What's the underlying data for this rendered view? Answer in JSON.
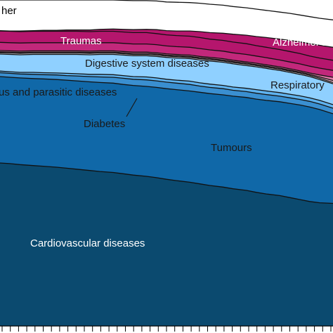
{
  "chart_data": {
    "type": "area",
    "stacked": true,
    "x_ticks": 40,
    "ylim": [
      0,
      1
    ],
    "grid": false,
    "legend": "inline",
    "x": [
      0,
      0.03,
      0.06,
      0.1,
      0.13,
      0.17,
      0.2,
      0.23,
      0.27,
      0.3,
      0.34,
      0.37,
      0.4,
      0.44,
      0.47,
      0.5,
      0.53,
      0.57,
      0.6,
      0.63,
      0.67,
      0.7,
      0.74,
      0.77,
      0.8,
      0.84,
      0.87,
      0.9,
      0.93,
      0.96,
      1
    ],
    "series": [
      {
        "name": "Cardiovascular diseases",
        "color": "#0b4a6f",
        "values": [
          0.5,
          0.498,
          0.495,
          0.492,
          0.49,
          0.487,
          0.484,
          0.481,
          0.477,
          0.474,
          0.471,
          0.467,
          0.463,
          0.459,
          0.455,
          0.45,
          0.446,
          0.441,
          0.436,
          0.431,
          0.426,
          0.421,
          0.416,
          0.41,
          0.405,
          0.4,
          0.394,
          0.388,
          0.382,
          0.378,
          0.376
        ]
      },
      {
        "name": "Tumours",
        "color": "#1068a8",
        "values": [
          0.265,
          0.265,
          0.266,
          0.267,
          0.268,
          0.269,
          0.27,
          0.271,
          0.272,
          0.273,
          0.274,
          0.274,
          0.275,
          0.276,
          0.277,
          0.278,
          0.279,
          0.28,
          0.281,
          0.282,
          0.283,
          0.284,
          0.285,
          0.286,
          0.287,
          0.288,
          0.289,
          0.29,
          0.29,
          0.286,
          0.275
        ]
      },
      {
        "name": "Diabetes",
        "color": "#3a8fd0",
        "values": [
          0.012,
          0.012,
          0.012,
          0.013,
          0.013,
          0.014,
          0.014,
          0.015,
          0.016,
          0.017,
          0.018,
          0.019,
          0.019,
          0.02,
          0.02,
          0.02,
          0.02,
          0.02,
          0.019,
          0.019,
          0.019,
          0.018,
          0.018,
          0.018,
          0.018,
          0.017,
          0.017,
          0.017,
          0.017,
          0.017,
          0.017
        ]
      },
      {
        "name": "us and parasitic diseases",
        "color": "#5fb2ee",
        "values": [
          0.005,
          0.005,
          0.005,
          0.006,
          0.006,
          0.006,
          0.007,
          0.007,
          0.007,
          0.008,
          0.008,
          0.008,
          0.008,
          0.009,
          0.009,
          0.009,
          0.009,
          0.01,
          0.01,
          0.01,
          0.01,
          0.01,
          0.01,
          0.011,
          0.011,
          0.011,
          0.011,
          0.011,
          0.011,
          0.011,
          0.011
        ]
      },
      {
        "name": "Respiratory",
        "color": "#8fd0ff",
        "values": [
          0.052,
          0.053,
          0.054,
          0.055,
          0.056,
          0.057,
          0.058,
          0.059,
          0.06,
          0.061,
          0.062,
          0.063,
          0.064,
          0.065,
          0.066,
          0.067,
          0.068,
          0.069,
          0.07,
          0.071,
          0.071,
          0.071,
          0.07,
          0.07,
          0.069,
          0.068,
          0.067,
          0.066,
          0.065,
          0.064,
          0.064
        ]
      },
      {
        "name": "",
        "color": "#f0eef8",
        "values": [
          0.004,
          0.004,
          0.004,
          0.004,
          0.004,
          0.004,
          0.004,
          0.004,
          0.004,
          0.004,
          0.004,
          0.004,
          0.004,
          0.004,
          0.004,
          0.004,
          0.004,
          0.004,
          0.004,
          0.004,
          0.004,
          0.004,
          0.004,
          0.004,
          0.004,
          0.004,
          0.004,
          0.004,
          0.004,
          0.004,
          0.004
        ]
      },
      {
        "name": "",
        "color": "#f3b7cf",
        "values": [
          0.003,
          0.003,
          0.003,
          0.003,
          0.003,
          0.003,
          0.003,
          0.003,
          0.003,
          0.003,
          0.003,
          0.003,
          0.003,
          0.003,
          0.003,
          0.003,
          0.003,
          0.003,
          0.003,
          0.003,
          0.003,
          0.003,
          0.003,
          0.003,
          0.003,
          0.003,
          0.003,
          0.003,
          0.003,
          0.004,
          0.006
        ]
      },
      {
        "name": "",
        "color": "#e07aa8",
        "values": [
          0.004,
          0.004,
          0.004,
          0.004,
          0.004,
          0.004,
          0.004,
          0.004,
          0.004,
          0.004,
          0.004,
          0.004,
          0.004,
          0.004,
          0.004,
          0.004,
          0.004,
          0.004,
          0.004,
          0.004,
          0.004,
          0.004,
          0.004,
          0.004,
          0.004,
          0.004,
          0.004,
          0.004,
          0.004,
          0.006,
          0.01
        ]
      },
      {
        "name": "Digestive system diseases",
        "color": "#c2287b",
        "values": [
          0.025,
          0.025,
          0.025,
          0.025,
          0.025,
          0.025,
          0.025,
          0.025,
          0.025,
          0.025,
          0.025,
          0.025,
          0.025,
          0.025,
          0.025,
          0.024,
          0.024,
          0.024,
          0.024,
          0.023,
          0.023,
          0.023,
          0.023,
          0.022,
          0.022,
          0.021,
          0.021,
          0.021,
          0.021,
          0.021,
          0.021
        ]
      },
      {
        "name": "Traumas",
        "color": "#b5166d",
        "values": [
          0.035,
          0.035,
          0.035,
          0.035,
          0.035,
          0.035,
          0.035,
          0.035,
          0.035,
          0.035,
          0.035,
          0.035,
          0.035,
          0.035,
          0.034,
          0.034,
          0.034,
          0.034,
          0.034,
          0.033,
          0.033,
          0.033,
          0.033,
          0.032,
          0.032,
          0.032,
          0.032,
          0.032,
          0.031,
          0.031,
          0.031
        ]
      },
      {
        "name": "Alzheimer's",
        "color": "#b5166d",
        "values": [
          0.001,
          0.001,
          0.002,
          0.002,
          0.003,
          0.003,
          0.004,
          0.004,
          0.005,
          0.006,
          0.007,
          0.008,
          0.009,
          0.01,
          0.012,
          0.013,
          0.014,
          0.016,
          0.018,
          0.02,
          0.022,
          0.024,
          0.026,
          0.028,
          0.03,
          0.032,
          0.034,
          0.036,
          0.038,
          0.039,
          0.04
        ]
      },
      {
        "name": "Other",
        "color": "#ffffff",
        "values": [
          0.094,
          0.095,
          0.095,
          0.094,
          0.093,
          0.093,
          0.092,
          0.092,
          0.092,
          0.09,
          0.089,
          0.089,
          0.089,
          0.088,
          0.088,
          0.088,
          0.088,
          0.087,
          0.087,
          0.087,
          0.086,
          0.085,
          0.084,
          0.084,
          0.083,
          0.083,
          0.083,
          0.082,
          0.083,
          0.083,
          0.084
        ]
      }
    ],
    "labels": [
      {
        "text": "her",
        "series": "Other",
        "color": "#000000"
      },
      {
        "text": "Traumas",
        "series": "Traumas",
        "color": "#ffffff"
      },
      {
        "text": "Alzheimer's",
        "series": "Alzheimer's",
        "color": "#ffffff"
      },
      {
        "text": "Digestive system diseases",
        "series": "Digestive system diseases",
        "color": "#1a1a1a"
      },
      {
        "text": "us and parasitic diseases",
        "series": "us and parasitic diseases",
        "color": "#1a1a1a"
      },
      {
        "text": "Respiratory",
        "series": "Respiratory",
        "color": "#1a1a1a"
      },
      {
        "text": "Diabetes",
        "series": "Diabetes",
        "color": "#1a1a1a"
      },
      {
        "text": "Tumours",
        "series": "Tumours",
        "color": "#1a1a1a"
      },
      {
        "text": "Cardiovascular diseases",
        "series": "Cardiovascular diseases",
        "color": "#ffffff"
      }
    ]
  }
}
